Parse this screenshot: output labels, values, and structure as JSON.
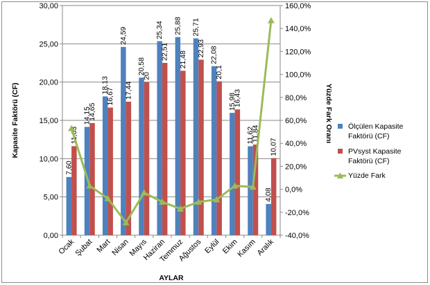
{
  "chart_data": {
    "type": "bar",
    "xlabel": "AYLAR",
    "ylabel": "Kapasite Faktörü (CF)",
    "y2label": "Yüzde Fark Oranı",
    "ylim": [
      0,
      30
    ],
    "y_ticks": [
      "0,00",
      "5,00",
      "10,00",
      "15,00",
      "20,00",
      "25,00",
      "30,00"
    ],
    "y2lim": [
      -40,
      160
    ],
    "y2_ticks": [
      "-40,0%",
      "-20,0%",
      "0,0%",
      "20,0%",
      "40,0%",
      "60,0%",
      "80,0%",
      "100,0%",
      "120,0%",
      "140,0%",
      "160,0%"
    ],
    "categories": [
      "Ocak",
      "Şubat",
      "Mart",
      "Nisan",
      "Mayıs",
      "Haziran",
      "Temmuz",
      "Ağustos",
      "Eylül",
      "Ekim",
      "Kasım",
      "Aralık"
    ],
    "grid": true,
    "legend_position": "right",
    "series": [
      {
        "name": "Ölçülen Kapasite Faktörü (CF)",
        "legend_lines": [
          "Ölçülen Kapasite",
          "Faktörü (CF)"
        ],
        "kind": "bar",
        "axis": "left",
        "color": "#4f81bd",
        "values": [
          7.6,
          14.15,
          18.13,
          24.59,
          20.58,
          25.34,
          25.88,
          25.71,
          22.08,
          15.98,
          11.62,
          4.08
        ],
        "labels": [
          "7,60",
          "14,15",
          "18,13",
          "24,59",
          "20,58",
          "25,34",
          "25,88",
          "25,71",
          "22,08",
          "15,98",
          "11,62",
          "4,08"
        ]
      },
      {
        "name": "PVsyst Kapasite Faktörü (CF)",
        "legend_lines": [
          "PVsyst Kapasite",
          "Faktörü (CF)"
        ],
        "kind": "bar",
        "axis": "left",
        "color": "#c0504d",
        "values": [
          11.63,
          14.65,
          16.67,
          17.44,
          20.0,
          22.51,
          21.48,
          22.93,
          20.1,
          16.43,
          11.84,
          10.07
        ],
        "labels": [
          "11,63",
          "14,65",
          "16,67",
          "17,44",
          "20",
          "22,51",
          "21,48",
          "22,93",
          "20,1",
          "16,43",
          "11,84",
          "10,07"
        ]
      },
      {
        "name": "Yüzde Fark",
        "legend_lines": [
          "Yüzde Fark"
        ],
        "kind": "line",
        "axis": "right",
        "color": "#9bbb59",
        "values": [
          53,
          3,
          -8,
          -29,
          -3,
          -11,
          -17,
          -11,
          -9,
          3,
          2,
          147
        ]
      }
    ]
  }
}
